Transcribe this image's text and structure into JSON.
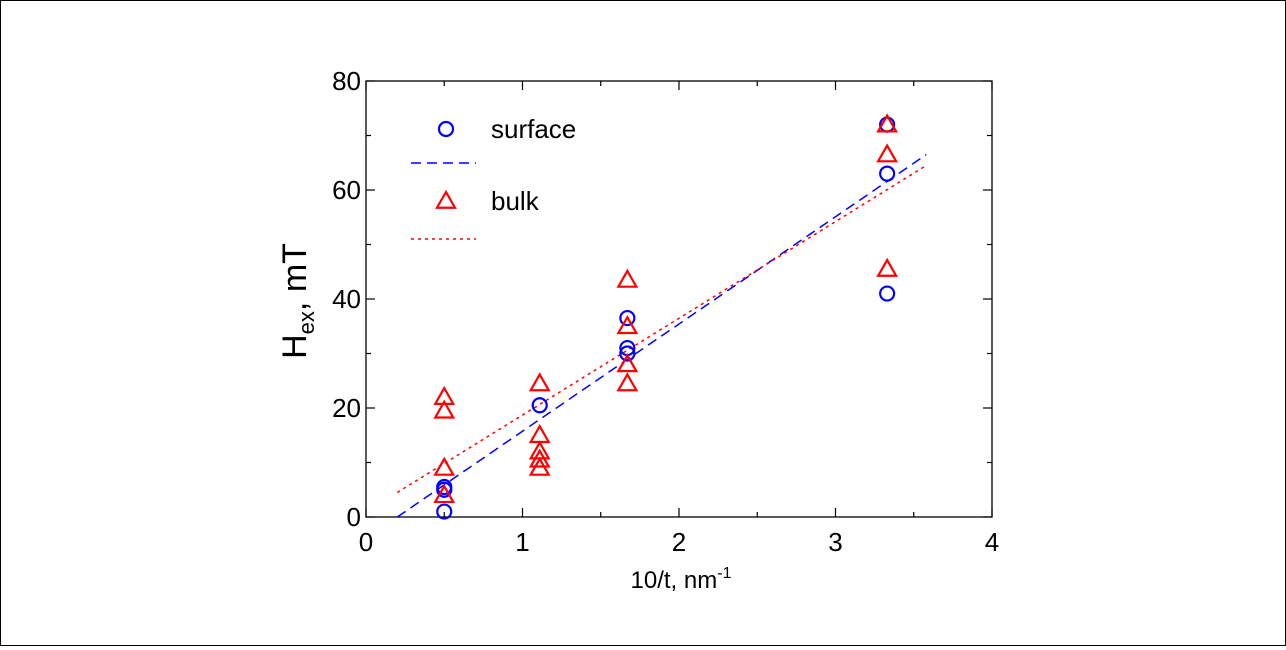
{
  "chart_data": {
    "type": "scatter",
    "title": "",
    "xlabel": "10/t, nm",
    "xlabel_sup": "-1",
    "ylabel": "H",
    "ylabel_sub": "ex",
    "ylabel_rest": ", mT",
    "xlim": [
      0,
      4
    ],
    "ylim": [
      0,
      80
    ],
    "xticks": [
      0,
      1,
      2,
      3,
      4
    ],
    "yticks": [
      0,
      20,
      40,
      60,
      80
    ],
    "grid": false,
    "legend_position": "top-left",
    "series": [
      {
        "name": "surface",
        "marker": "circle",
        "color": "#0000ff",
        "points": [
          [
            0.5,
            1
          ],
          [
            0.5,
            5
          ],
          [
            0.5,
            5.5
          ],
          [
            1.11,
            20.5
          ],
          [
            1.67,
            30
          ],
          [
            1.67,
            31
          ],
          [
            1.67,
            36.5
          ],
          [
            3.33,
            41
          ],
          [
            3.33,
            63
          ],
          [
            3.33,
            72
          ]
        ]
      },
      {
        "name": "bulk",
        "marker": "triangle",
        "color": "#ff0000",
        "points": [
          [
            0.5,
            4
          ],
          [
            0.5,
            9
          ],
          [
            0.5,
            19.5
          ],
          [
            0.5,
            22
          ],
          [
            1.11,
            9
          ],
          [
            1.11,
            10.5
          ],
          [
            1.11,
            12
          ],
          [
            1.11,
            15
          ],
          [
            1.11,
            24.5
          ],
          [
            1.67,
            24.5
          ],
          [
            1.67,
            28
          ],
          [
            1.67,
            35
          ],
          [
            1.67,
            43.5
          ],
          [
            3.33,
            45.5
          ],
          [
            3.33,
            66.5
          ],
          [
            3.33,
            72
          ]
        ]
      }
    ],
    "fits": [
      {
        "series": "surface",
        "style": "dashed",
        "color": "#0000ff",
        "x": [
          0.2,
          3.58
        ],
        "y": [
          0,
          66.5
        ]
      },
      {
        "series": "bulk",
        "style": "dotted",
        "color": "#ff0000",
        "x": [
          0.2,
          3.58
        ],
        "y": [
          4.5,
          64.5
        ]
      }
    ]
  }
}
